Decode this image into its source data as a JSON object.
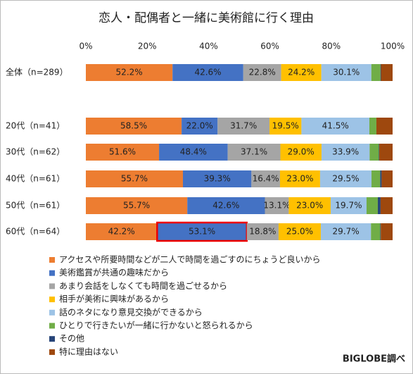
{
  "chart_data": {
    "type": "stacked-bar-100",
    "title": "恋人・配偶者と一緒に美術館に行く理由",
    "categories": [
      "全体（n=289）",
      "20代（n=41）",
      "30代（n=62）",
      "40代（n=61）",
      "50代（n=61）",
      "60代（n=64）"
    ],
    "xlim": [
      0,
      100
    ],
    "xticks": [
      {
        "value": 0,
        "label": "0%"
      },
      {
        "value": 20,
        "label": "20%"
      },
      {
        "value": 40,
        "label": "40%"
      },
      {
        "value": 60,
        "label": "60%"
      },
      {
        "value": 80,
        "label": "80%"
      },
      {
        "value": 100,
        "label": "100%"
      }
    ],
    "series": [
      {
        "name": "アクセスや所要時間などが二人で時間を過ごすのにちょうど良いから",
        "color": "#ed7d31",
        "values": [
          52.2,
          58.5,
          51.6,
          55.7,
          55.7,
          42.2
        ],
        "value_labels": [
          "52.2%",
          "58.5%",
          "51.6%",
          "55.7%",
          "55.7%",
          "42.2%"
        ]
      },
      {
        "name": "美術鑑賞が共通の趣味だから",
        "color": "#4472c4",
        "values": [
          42.6,
          22.0,
          48.4,
          39.3,
          42.6,
          53.1
        ],
        "value_labels": [
          "42.6%",
          "22.0%",
          "48.4%",
          "39.3%",
          "42.6%",
          "53.1%"
        ]
      },
      {
        "name": "あまり会話をしなくても時間を過ごせるから",
        "color": "#a5a5a5",
        "values": [
          22.8,
          31.7,
          37.1,
          16.4,
          13.1,
          18.8
        ],
        "value_labels": [
          "22.8%",
          "31.7%",
          "37.1%",
          "16.4%",
          "13.1%",
          "18.8%"
        ]
      },
      {
        "name": "相手が美術に興味があるから",
        "color": "#ffc000",
        "values": [
          24.2,
          19.5,
          29.0,
          23.0,
          23.0,
          25.0
        ],
        "value_labels": [
          "24.2%",
          "19.5%",
          "29.0%",
          "23.0%",
          "23.0%",
          "25.0%"
        ]
      },
      {
        "name": "話のネタになり意見交換ができるから",
        "color": "#9dc3e6",
        "values": [
          30.1,
          41.5,
          33.9,
          29.5,
          19.7,
          29.7
        ],
        "value_labels": [
          "30.1%",
          "41.5%",
          "33.9%",
          "29.5%",
          "19.7%",
          "29.7%"
        ]
      },
      {
        "name": "ひとりで行きたいが一緒に行かないと怒られるから",
        "color": "#70ad47",
        "values": [
          5.5,
          4.3,
          6.5,
          5.0,
          6.2,
          5.5
        ]
      },
      {
        "name": "その他",
        "color": "#264478",
        "values": [
          0.3,
          0,
          0.3,
          0.8,
          1.5,
          0.3
        ]
      },
      {
        "name": "特に理由はない",
        "color": "#9e480e",
        "values": [
          7.0,
          9.9,
          9.4,
          6.3,
          6.6,
          7.0
        ]
      }
    ],
    "annotation": "BIGLOBE調べ"
  }
}
